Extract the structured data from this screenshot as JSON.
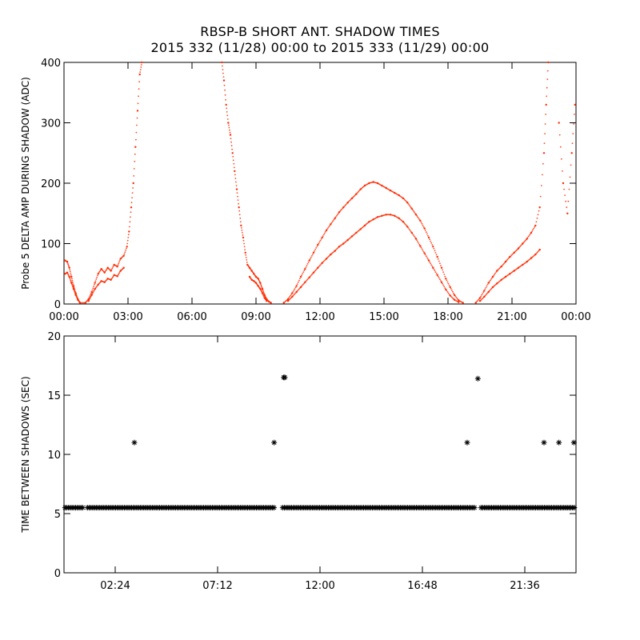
{
  "page": {
    "title": "RBSP-B SHORT ANT. SHADOW TIMES",
    "subtitle": "2015 332 (11/28) 00:00 to 2015 333 (11/29) 00:00"
  },
  "chart_data": [
    {
      "type": "scatter",
      "title": "",
      "xlabel": "",
      "ylabel": "Probe 5 DELTA AMP DURING SHADOW (ADC)",
      "x_unit": "hours",
      "xlim": [
        0,
        24
      ],
      "ylim": [
        0,
        400
      ],
      "x_tick_labels": [
        "00:00",
        "03:00",
        "06:00",
        "09:00",
        "12:00",
        "15:00",
        "18:00",
        "21:00",
        "00:00"
      ],
      "x_tick_values": [
        0,
        3,
        6,
        9,
        12,
        15,
        18,
        21,
        24
      ],
      "y_tick_labels": [
        "0",
        "100",
        "200",
        "300",
        "400"
      ],
      "y_tick_values": [
        0,
        100,
        200,
        300,
        400
      ],
      "marker_color": "#ff2a00",
      "series": [
        {
          "points": [
            [
              0.05,
              72
            ],
            [
              0.15,
              70
            ],
            [
              0.25,
              60
            ],
            [
              0.35,
              45
            ],
            [
              0.45,
              30
            ],
            [
              0.55,
              18
            ],
            [
              0.65,
              8
            ],
            [
              0.75,
              2
            ],
            [
              1.0,
              2
            ],
            [
              1.15,
              8
            ],
            [
              1.3,
              20
            ],
            [
              1.45,
              35
            ],
            [
              1.6,
              50
            ],
            [
              1.75,
              58
            ],
            [
              1.9,
              52
            ],
            [
              2.05,
              60
            ],
            [
              2.2,
              55
            ],
            [
              2.35,
              65
            ],
            [
              2.5,
              62
            ],
            [
              2.65,
              75
            ],
            [
              2.8,
              80
            ],
            [
              2.95,
              95
            ],
            [
              3.05,
              120
            ],
            [
              3.15,
              160
            ],
            [
              3.25,
              200
            ],
            [
              3.35,
              260
            ],
            [
              3.45,
              320
            ],
            [
              3.55,
              380
            ],
            [
              3.65,
              400
            ],
            [
              7.4,
              400
            ],
            [
              7.5,
              370
            ],
            [
              7.6,
              330
            ],
            [
              7.7,
              300
            ],
            [
              7.8,
              280
            ],
            [
              7.9,
              250
            ],
            [
              8.0,
              220
            ],
            [
              8.1,
              190
            ],
            [
              8.2,
              160
            ],
            [
              8.3,
              130
            ],
            [
              8.4,
              110
            ],
            [
              8.5,
              85
            ],
            [
              8.6,
              65
            ],
            [
              8.7,
              60
            ],
            [
              8.8,
              55
            ],
            [
              8.9,
              50
            ],
            [
              9.0,
              45
            ],
            [
              9.1,
              42
            ],
            [
              9.2,
              35
            ],
            [
              9.3,
              25
            ],
            [
              9.4,
              15
            ],
            [
              9.5,
              8
            ],
            [
              9.6,
              4
            ],
            [
              9.7,
              2
            ],
            [
              10.3,
              2
            ],
            [
              10.5,
              8
            ],
            [
              10.7,
              18
            ],
            [
              10.9,
              30
            ],
            [
              11.1,
              45
            ],
            [
              11.3,
              58
            ],
            [
              11.5,
              72
            ],
            [
              11.7,
              85
            ],
            [
              11.9,
              98
            ],
            [
              12.1,
              110
            ],
            [
              12.3,
              122
            ],
            [
              12.5,
              132
            ],
            [
              12.7,
              142
            ],
            [
              12.9,
              152
            ],
            [
              13.1,
              160
            ],
            [
              13.3,
              168
            ],
            [
              13.5,
              175
            ],
            [
              13.7,
              182
            ],
            [
              13.9,
              190
            ],
            [
              14.1,
              196
            ],
            [
              14.3,
              200
            ],
            [
              14.5,
              202
            ],
            [
              14.7,
              200
            ],
            [
              14.9,
              196
            ],
            [
              15.1,
              192
            ],
            [
              15.3,
              188
            ],
            [
              15.5,
              184
            ],
            [
              15.7,
              180
            ],
            [
              15.9,
              175
            ],
            [
              16.1,
              168
            ],
            [
              16.3,
              158
            ],
            [
              16.5,
              148
            ],
            [
              16.7,
              138
            ],
            [
              16.9,
              125
            ],
            [
              17.1,
              110
            ],
            [
              17.3,
              95
            ],
            [
              17.5,
              78
            ],
            [
              17.7,
              60
            ],
            [
              17.9,
              42
            ],
            [
              18.1,
              28
            ],
            [
              18.3,
              15
            ],
            [
              18.5,
              6
            ],
            [
              18.7,
              2
            ],
            [
              19.3,
              2
            ],
            [
              19.5,
              10
            ],
            [
              19.7,
              22
            ],
            [
              19.9,
              35
            ],
            [
              20.1,
              45
            ],
            [
              20.3,
              55
            ],
            [
              20.5,
              62
            ],
            [
              20.7,
              70
            ],
            [
              20.9,
              78
            ],
            [
              21.1,
              85
            ],
            [
              21.3,
              92
            ],
            [
              21.5,
              100
            ],
            [
              21.7,
              108
            ],
            [
              21.9,
              118
            ],
            [
              22.1,
              130
            ],
            [
              22.3,
              160
            ],
            [
              22.5,
              250
            ],
            [
              22.6,
              330
            ],
            [
              22.7,
              400
            ],
            [
              23.2,
              300
            ],
            [
              23.4,
              200
            ],
            [
              23.6,
              150
            ],
            [
              23.8,
              250
            ],
            [
              23.95,
              330
            ]
          ]
        },
        {
          "points": [
            [
              0.05,
              50
            ],
            [
              0.15,
              52
            ],
            [
              0.25,
              45
            ],
            [
              0.35,
              35
            ],
            [
              0.45,
              25
            ],
            [
              0.55,
              15
            ],
            [
              0.65,
              7
            ],
            [
              0.75,
              2
            ],
            [
              1.15,
              5
            ],
            [
              1.3,
              15
            ],
            [
              1.45,
              25
            ],
            [
              1.6,
              32
            ],
            [
              1.75,
              38
            ],
            [
              1.9,
              36
            ],
            [
              2.05,
              42
            ],
            [
              2.2,
              40
            ],
            [
              2.35,
              48
            ],
            [
              2.5,
              46
            ],
            [
              2.65,
              55
            ],
            [
              2.8,
              60
            ],
            [
              8.7,
              45
            ],
            [
              8.8,
              40
            ],
            [
              8.9,
              38
            ],
            [
              9.0,
              35
            ],
            [
              9.1,
              30
            ],
            [
              9.2,
              25
            ],
            [
              9.3,
              18
            ],
            [
              9.4,
              10
            ],
            [
              9.5,
              5
            ],
            [
              10.5,
              5
            ],
            [
              10.7,
              12
            ],
            [
              10.9,
              20
            ],
            [
              11.1,
              28
            ],
            [
              11.3,
              36
            ],
            [
              11.5,
              44
            ],
            [
              11.7,
              52
            ],
            [
              11.9,
              60
            ],
            [
              12.1,
              68
            ],
            [
              12.3,
              75
            ],
            [
              12.5,
              82
            ],
            [
              12.7,
              88
            ],
            [
              12.9,
              95
            ],
            [
              13.1,
              100
            ],
            [
              13.3,
              106
            ],
            [
              13.5,
              112
            ],
            [
              13.7,
              118
            ],
            [
              13.9,
              124
            ],
            [
              14.1,
              130
            ],
            [
              14.3,
              136
            ],
            [
              14.5,
              140
            ],
            [
              14.7,
              144
            ],
            [
              14.9,
              146
            ],
            [
              15.1,
              148
            ],
            [
              15.3,
              148
            ],
            [
              15.5,
              146
            ],
            [
              15.7,
              142
            ],
            [
              15.9,
              136
            ],
            [
              16.1,
              128
            ],
            [
              16.3,
              118
            ],
            [
              16.5,
              108
            ],
            [
              16.7,
              96
            ],
            [
              16.9,
              84
            ],
            [
              17.1,
              72
            ],
            [
              17.3,
              60
            ],
            [
              17.5,
              48
            ],
            [
              17.7,
              36
            ],
            [
              17.9,
              24
            ],
            [
              18.1,
              14
            ],
            [
              18.3,
              7
            ],
            [
              18.5,
              3
            ],
            [
              19.5,
              5
            ],
            [
              19.7,
              12
            ],
            [
              19.9,
              20
            ],
            [
              20.1,
              28
            ],
            [
              20.3,
              34
            ],
            [
              20.5,
              40
            ],
            [
              20.7,
              45
            ],
            [
              20.9,
              50
            ],
            [
              21.1,
              55
            ],
            [
              21.3,
              60
            ],
            [
              21.5,
              65
            ],
            [
              21.7,
              70
            ],
            [
              21.9,
              76
            ],
            [
              22.1,
              82
            ],
            [
              22.3,
              90
            ]
          ]
        }
      ]
    },
    {
      "type": "scatter",
      "title": "",
      "xlabel": "",
      "ylabel": "TIME BETWEEN SHADOWS (SEC)",
      "x_unit": "hours",
      "xlim": [
        0,
        24
      ],
      "ylim": [
        0,
        20
      ],
      "x_tick_labels": [
        "02:24",
        "07:12",
        "12:00",
        "16:48",
        "21:36"
      ],
      "x_tick_values": [
        2.4,
        7.2,
        12.0,
        16.8,
        21.6
      ],
      "y_tick_labels": [
        "0",
        "5",
        "10",
        "15",
        "20"
      ],
      "y_tick_values": [
        0,
        5,
        10,
        15,
        20
      ],
      "marker": "asterisk",
      "marker_color": "#000000",
      "baseline_value": 5.5,
      "baseline_segments": [
        [
          0.05,
          0.95
        ],
        [
          1.1,
          9.9
        ],
        [
          10.25,
          19.3
        ],
        [
          19.55,
          23.95
        ]
      ],
      "outliers": [
        [
          3.3,
          11.0
        ],
        [
          9.85,
          11.0
        ],
        [
          10.3,
          16.5
        ],
        [
          10.35,
          16.5
        ],
        [
          18.9,
          11.0
        ],
        [
          19.4,
          16.4
        ],
        [
          22.5,
          11.0
        ],
        [
          23.2,
          11.0
        ],
        [
          23.9,
          11.0
        ]
      ]
    }
  ]
}
